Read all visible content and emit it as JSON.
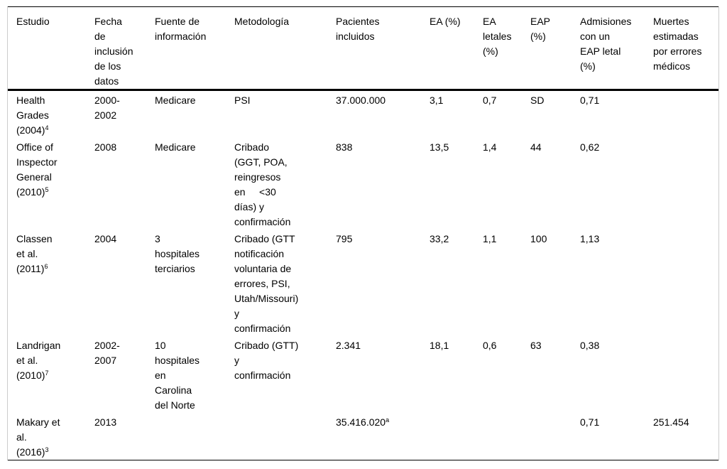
{
  "table": {
    "columns": [
      {
        "label": "Estudio"
      },
      {
        "label": "Fecha\nde\ninclusión\nde los\ndatos"
      },
      {
        "label": "Fuente de\ninformación"
      },
      {
        "label": "Metodología"
      },
      {
        "label": "Pacientes\nincluidos"
      },
      {
        "label": "EA (%)"
      },
      {
        "label": "EA\nletales\n(%)"
      },
      {
        "label": "EAP\n(%)"
      },
      {
        "label": "Admisiones\ncon un\nEAP letal\n(%)"
      },
      {
        "label": "Muertes\nestimadas\npor errores\nmédicos"
      }
    ],
    "rows": [
      {
        "cells": [
          {
            "text": "Health\nGrades\n(2004)",
            "sup": "4"
          },
          {
            "text": "2000-\n2002"
          },
          {
            "text": "Medicare"
          },
          {
            "text": "PSI"
          },
          {
            "text": "37.000.000"
          },
          {
            "text": "3,1"
          },
          {
            "text": "0,7"
          },
          {
            "text": "SD"
          },
          {
            "text": "0,71"
          },
          {
            "text": ""
          }
        ]
      },
      {
        "cells": [
          {
            "text": "Office of\nInspector\nGeneral\n(2010)",
            "sup": "5"
          },
          {
            "text": "2008"
          },
          {
            "text": "Medicare"
          },
          {
            "text": "Cribado\n(GGT, POA,\nreingresos\nen     <30\ndías) y\nconfirmación"
          },
          {
            "text": "838"
          },
          {
            "text": "13,5"
          },
          {
            "text": "1,4"
          },
          {
            "text": "44"
          },
          {
            "text": "0,62"
          },
          {
            "text": ""
          }
        ]
      },
      {
        "cells": [
          {
            "text": "Classen\net al.\n(2011)",
            "sup": "6"
          },
          {
            "text": "2004"
          },
          {
            "text": "3\nhospitales\nterciarios"
          },
          {
            "text": "Cribado (GTT\nnotificación\nvoluntaria de\nerrores, PSI,\nUtah/Missouri)\ny\nconfirmación"
          },
          {
            "text": "795"
          },
          {
            "text": "33,2"
          },
          {
            "text": "1,1"
          },
          {
            "text": "100"
          },
          {
            "text": "1,13"
          },
          {
            "text": ""
          }
        ]
      },
      {
        "cells": [
          {
            "text": "Landrigan\net al.\n(2010)",
            "sup": "7"
          },
          {
            "text": "2002-\n2007"
          },
          {
            "text": "10\nhospitales\nen\nCarolina\ndel Norte"
          },
          {
            "text": "Cribado (GTT)\ny\nconfirmación"
          },
          {
            "text": "2.341"
          },
          {
            "text": "18,1"
          },
          {
            "text": "0,6"
          },
          {
            "text": "63"
          },
          {
            "text": "0,38"
          },
          {
            "text": ""
          }
        ]
      },
      {
        "cells": [
          {
            "text": "Makary et\nal.\n(2016)",
            "sup": "3"
          },
          {
            "text": "2013"
          },
          {
            "text": ""
          },
          {
            "text": ""
          },
          {
            "text": "35.416.020",
            "sup": "a"
          },
          {
            "text": ""
          },
          {
            "text": ""
          },
          {
            "text": ""
          },
          {
            "text": "0,71"
          },
          {
            "text": "251.454"
          }
        ]
      }
    ]
  }
}
